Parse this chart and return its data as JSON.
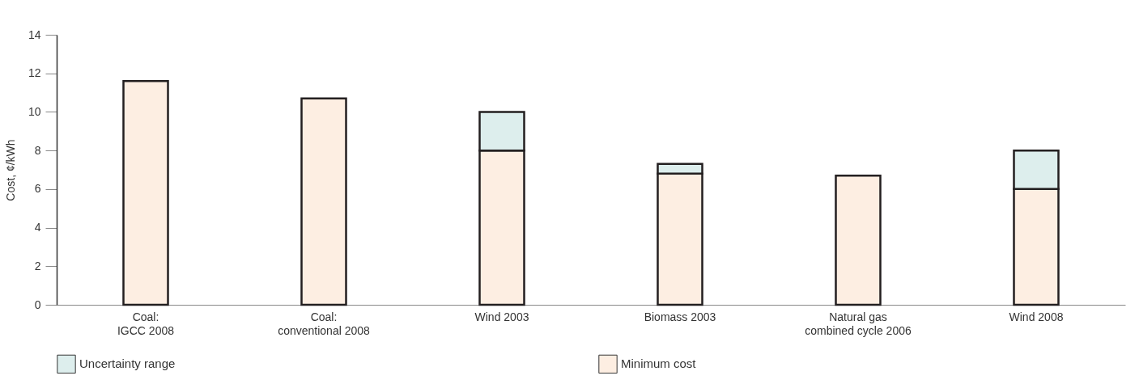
{
  "chart_data": {
    "type": "bar",
    "stacked": true,
    "ylabel": "Cost, ¢/kWh",
    "categories": [
      "Coal:\nIGCC 2008",
      "Coal:\nconventional 2008",
      "Wind 2003",
      "Biomass 2003",
      "Natural gas\ncombined cycle 2006",
      "Wind 2008"
    ],
    "series": [
      {
        "name": "Minimum cost",
        "color": "#fdeee2",
        "values": [
          11.6,
          10.7,
          8,
          6.8,
          6.7,
          6
        ]
      },
      {
        "name": "Uncertainty range",
        "color": "#ddeeed",
        "values": [
          null,
          null,
          2,
          0.5,
          null,
          2
        ]
      }
    ],
    "ylim": [
      0,
      14
    ],
    "yticks": [
      0,
      2,
      4,
      6,
      8,
      10,
      12,
      14
    ],
    "grid": false,
    "legend": "bottom"
  }
}
